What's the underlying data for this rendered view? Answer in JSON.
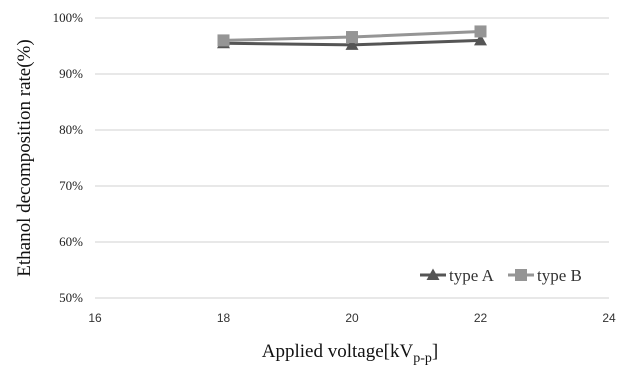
{
  "chart_data": {
    "type": "line",
    "xlabel": "Applied voltage[kV",
    "xlabel_sub": "p-p",
    "xlabel_end": "]",
    "ylabel": "Ethanol decomposition rate(%)",
    "xlim": [
      16,
      24
    ],
    "ylim": [
      50,
      100
    ],
    "x_ticks": [
      16,
      18,
      20,
      22,
      24
    ],
    "y_ticks": [
      50,
      60,
      70,
      80,
      90,
      100
    ],
    "y_tick_suffix": "%",
    "grid": "horizontal",
    "legend_position": "bottom-right",
    "x": [
      18,
      20,
      22
    ],
    "series": [
      {
        "name": "type A",
        "marker": "triangle",
        "color": "#555555",
        "values": [
          95.5,
          95.2,
          96.0
        ]
      },
      {
        "name": "type B",
        "marker": "square",
        "color": "#959595",
        "values": [
          96.0,
          96.6,
          97.6
        ]
      }
    ]
  }
}
